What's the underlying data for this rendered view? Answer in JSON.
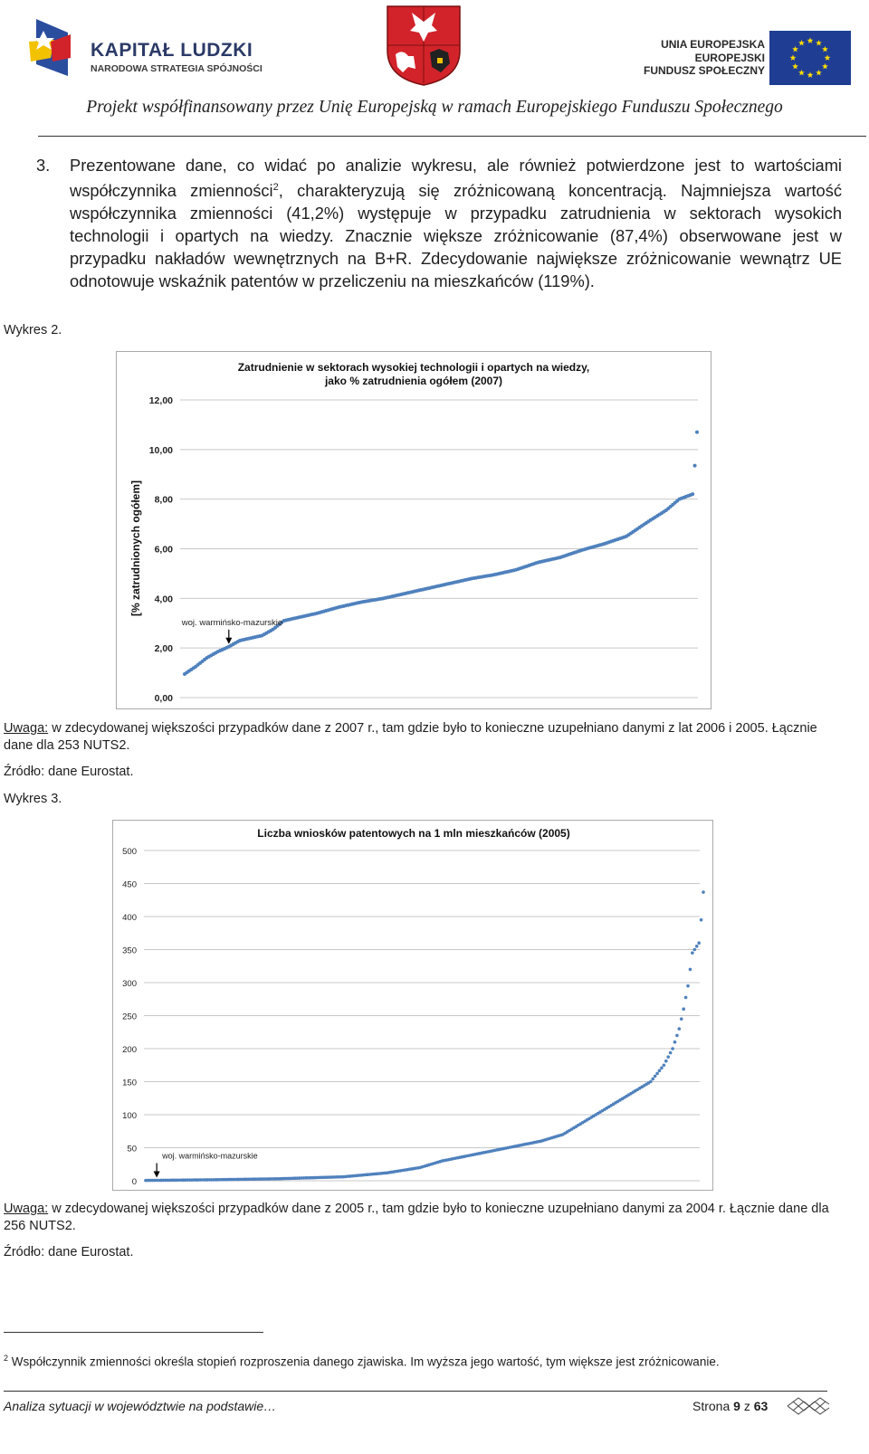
{
  "header": {
    "kl_title": "KAPITAŁ LUDZKI",
    "kl_subtitle": "NARODOWA STRATEGIA SPÓJNOŚCI",
    "ue_line1": "UNIA EUROPEJSKA",
    "ue_line2": "EUROPEJSKI",
    "ue_line3": "FUNDUSZ SPOŁECZNY",
    "tagline": "Projekt współfinansowany przez Unię Europejską w ramach Europejskiego Funduszu Społecznego",
    "colors": {
      "kl_navy": "#2b3a67",
      "eu_blue": "#1f3e93",
      "eu_star": "#ffdd00",
      "crest_red": "#d2232a"
    }
  },
  "paragraph": {
    "number": "3.",
    "text_before_sup": "Prezentowane dane, co widać po analizie wykresu, ale również potwierdzone jest to wartościami współczynnika zmienności",
    "sup": "2",
    "text_after_sup": ", charakteryzują się zróżnicowaną koncentracją. Najmniejsza wartość współczynnika zmienności (41,2%) występuje w przypadku zatrudnienia w sektorach wysokich technologii i opartych na wiedzy. Znacznie większe zróżnicowanie (87,4%) obserwowane jest w przypadku nakładów wewnętrznych na B+R. Zdecydowanie największe zróżnicowanie wewnątrz UE odnotowuje wskaźnik patentów w przeliczeniu na mieszkańców (119%)."
  },
  "chart1_section": {
    "label": "Wykres 2.",
    "note_bold": "Uwaga:",
    "note_text": " w zdecydowanej większości przypadków dane z 2007 r., tam gdzie było to konieczne uzupełniano danymi z lat 2006 i 2005. Łącznie dane dla 253 NUTS2.",
    "source": "Źródło: dane Eurostat."
  },
  "chart2_section": {
    "label": "Wykres 3.",
    "note_bold": "Uwaga:",
    "note_text": " w zdecydowanej większości przypadków dane z 2005 r., tam gdzie było to konieczne uzupełniano danymi za 2004 r. Łącznie dane dla 256 NUTS2.",
    "source": "Źródło: dane Eurostat."
  },
  "chart_data": [
    {
      "type": "scatter",
      "title_line1": "Zatrudnienie w sektorach wysokiej technologii i opartych na wiedzy,",
      "title_line2": "jako % zatrudnienia ogółem (2007)",
      "ylabel": "[% zatrudnionych ogółem]",
      "xlabel": "",
      "ylim": [
        0,
        12
      ],
      "yticks": [
        "0,00",
        "2,00",
        "4,00",
        "6,00",
        "8,00",
        "10,00",
        "12,00"
      ],
      "grid": true,
      "count": 253,
      "annotation": "woj. warmińsko-mazurskie",
      "annotation_index": 20,
      "marker_color": "#4f81bd",
      "sorted_curve_points": [
        [
          0,
          0.95
        ],
        [
          5,
          1.25
        ],
        [
          10,
          1.6
        ],
        [
          15,
          1.85
        ],
        [
          20,
          2.05
        ],
        [
          25,
          2.3
        ],
        [
          30,
          2.4
        ],
        [
          35,
          2.5
        ],
        [
          40,
          2.75
        ],
        [
          45,
          3.1
        ],
        [
          50,
          3.2
        ],
        [
          60,
          3.4
        ],
        [
          70,
          3.65
        ],
        [
          80,
          3.85
        ],
        [
          90,
          4.0
        ],
        [
          100,
          4.2
        ],
        [
          110,
          4.4
        ],
        [
          120,
          4.6
        ],
        [
          130,
          4.8
        ],
        [
          140,
          4.95
        ],
        [
          150,
          5.15
        ],
        [
          160,
          5.45
        ],
        [
          170,
          5.65
        ],
        [
          180,
          5.95
        ],
        [
          190,
          6.2
        ],
        [
          200,
          6.5
        ],
        [
          210,
          7.1
        ],
        [
          218,
          7.55
        ],
        [
          224,
          8.0
        ],
        [
          230,
          8.2
        ],
        [
          231,
          9.35
        ],
        [
          232,
          10.7
        ]
      ]
    },
    {
      "type": "scatter",
      "title": "Liczba wniosków patentowych na 1 mln mieszkańców (2005)",
      "xlabel": "",
      "ylabel": "",
      "ylim": [
        0,
        500
      ],
      "yticks": [
        "0",
        "50",
        "100",
        "150",
        "200",
        "250",
        "300",
        "350",
        "400",
        "450",
        "500"
      ],
      "grid": true,
      "count": 256,
      "annotation": "woj. warmińsko-mazurskie",
      "annotation_index": 5,
      "marker_color": "#4f81bd",
      "sorted_curve_points": [
        [
          0,
          0.5
        ],
        [
          30,
          1.5
        ],
        [
          60,
          3
        ],
        [
          90,
          6
        ],
        [
          110,
          12
        ],
        [
          125,
          20
        ],
        [
          135,
          30
        ],
        [
          150,
          40
        ],
        [
          165,
          50
        ],
        [
          180,
          60
        ],
        [
          190,
          70
        ],
        [
          200,
          90
        ],
        [
          210,
          110
        ],
        [
          220,
          130
        ],
        [
          230,
          150
        ],
        [
          236,
          175
        ],
        [
          240,
          200
        ],
        [
          243,
          230
        ],
        [
          245,
          260
        ],
        [
          247,
          295
        ],
        [
          249,
          345
        ],
        [
          251,
          355
        ],
        [
          252,
          360
        ],
        [
          253,
          395
        ],
        [
          254,
          437
        ]
      ]
    }
  ],
  "footnote": {
    "sup": "2",
    "text": " Współczynnik zmienności określa stopień rozproszenia danego zjawiska. Im wyższa jego wartość, tym większe jest zróżnicowanie."
  },
  "footer": {
    "left": "Analiza sytuacji w województwie na podstawie…",
    "page_word": "Strona ",
    "page_num": "9",
    "of_word": " z ",
    "total": "63"
  }
}
